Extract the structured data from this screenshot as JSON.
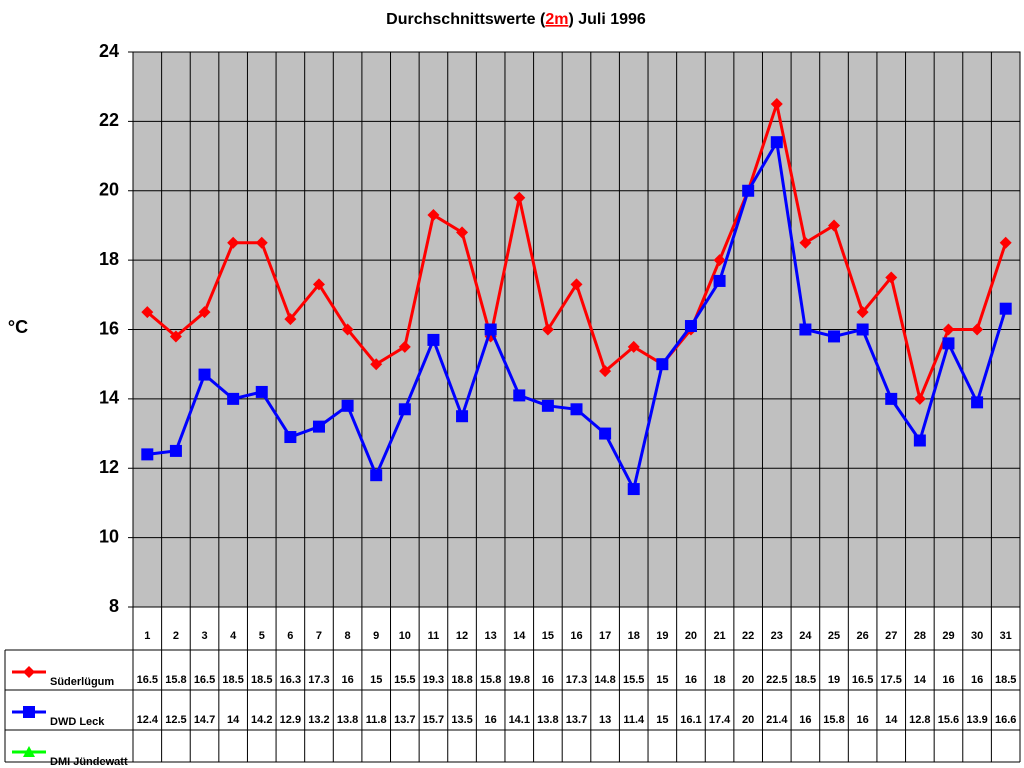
{
  "chart_data": {
    "type": "line",
    "title_parts": [
      "Durchschnittswerte (",
      "2m",
      ") Juli 1996"
    ],
    "y_label": "°C",
    "categories": [
      "1",
      "2",
      "3",
      "4",
      "5",
      "6",
      "7",
      "8",
      "9",
      "10",
      "11",
      "12",
      "13",
      "14",
      "15",
      "16",
      "17",
      "18",
      "19",
      "20",
      "21",
      "22",
      "23",
      "24",
      "25",
      "26",
      "27",
      "28",
      "29",
      "30",
      "31"
    ],
    "series": [
      {
        "name": "Süderlügum",
        "color": "#ff0000",
        "marker": "diamond",
        "values": [
          16.5,
          15.8,
          16.5,
          18.5,
          18.5,
          16.3,
          17.3,
          16,
          15,
          15.5,
          19.3,
          18.8,
          15.8,
          19.8,
          16,
          17.3,
          14.8,
          15.5,
          15,
          16,
          18,
          20,
          22.5,
          18.5,
          19,
          16.5,
          17.5,
          14,
          16,
          16,
          18.5
        ]
      },
      {
        "name": "DWD Leck",
        "color": "#0000ff",
        "marker": "square",
        "values": [
          12.4,
          12.5,
          14.7,
          14,
          14.2,
          12.9,
          13.2,
          13.8,
          11.8,
          13.7,
          15.7,
          13.5,
          16,
          14.1,
          13.8,
          13.7,
          13,
          11.4,
          15,
          16.1,
          17.4,
          20,
          21.4,
          16,
          15.8,
          16,
          14,
          12.8,
          15.6,
          13.9,
          16.6
        ]
      },
      {
        "name": "DMI Jündewatt",
        "color": "#00ff00",
        "marker": "triangle",
        "values": [
          null,
          null,
          null,
          null,
          null,
          null,
          null,
          null,
          null,
          null,
          null,
          null,
          null,
          null,
          null,
          null,
          null,
          null,
          null,
          null,
          null,
          null,
          null,
          null,
          null,
          null,
          null,
          null,
          null,
          null,
          null
        ]
      }
    ],
    "ylim": [
      8,
      24
    ],
    "yticks": [
      8,
      10,
      12,
      14,
      16,
      18,
      20,
      22,
      24
    ],
    "grid": true,
    "data_table": true
  }
}
